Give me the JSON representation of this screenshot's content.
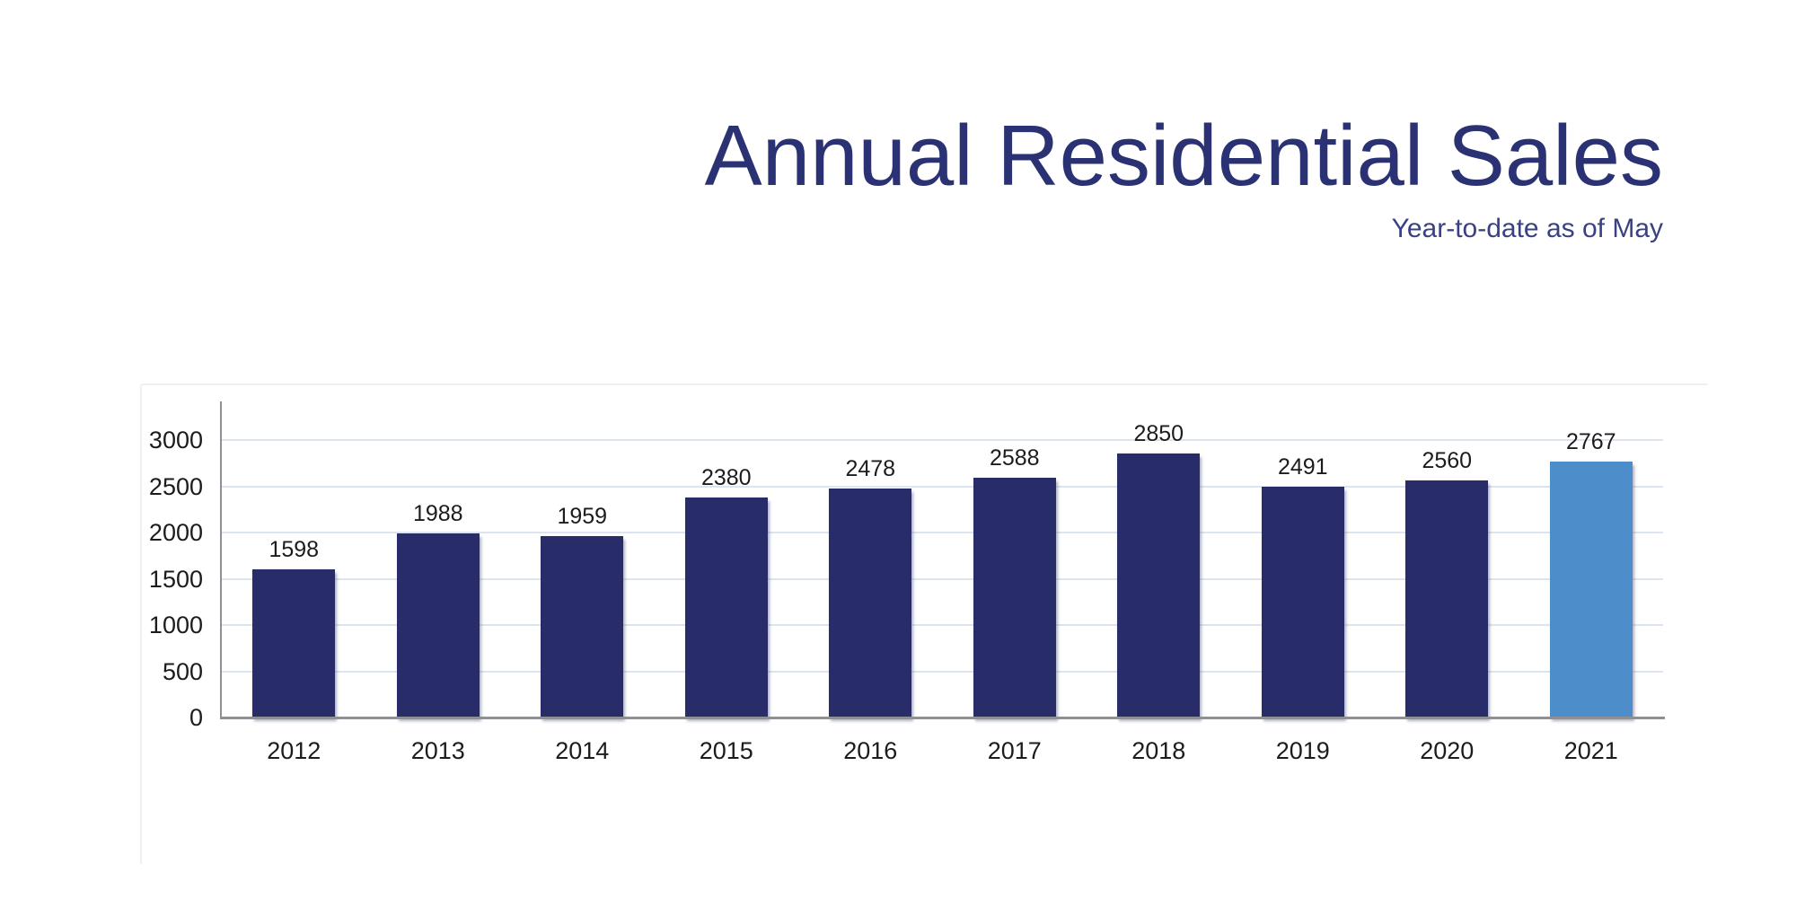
{
  "header": {
    "title": "Annual Residential Sales",
    "subtitle": "Year-to-date as of May"
  },
  "chart_data": {
    "type": "bar",
    "title": "Annual Residential Sales",
    "subtitle": "Year-to-date as of May",
    "categories": [
      "2012",
      "2013",
      "2014",
      "2015",
      "2016",
      "2017",
      "2018",
      "2019",
      "2020",
      "2021"
    ],
    "values": [
      1598,
      1988,
      1959,
      2380,
      2478,
      2588,
      2850,
      2491,
      2560,
      2767
    ],
    "data_labels": [
      1598,
      1988,
      1959,
      2380,
      2478,
      2588,
      2850,
      2491,
      2560,
      2767
    ],
    "xlabel": "",
    "ylabel": "",
    "ylim": [
      0,
      3000
    ],
    "y_ticks": [
      0,
      500,
      1000,
      1500,
      2000,
      2500,
      3000
    ],
    "grid": true,
    "legend": false,
    "colors": {
      "bar": "#282d69",
      "highlight": "#4d8dc9",
      "title": "#2b3274",
      "subtitle": "#3a4183",
      "labels": "#1c1c1c",
      "gridline": "#dce4f0",
      "axis": "#8f9093"
    },
    "highlight_index": 9
  }
}
